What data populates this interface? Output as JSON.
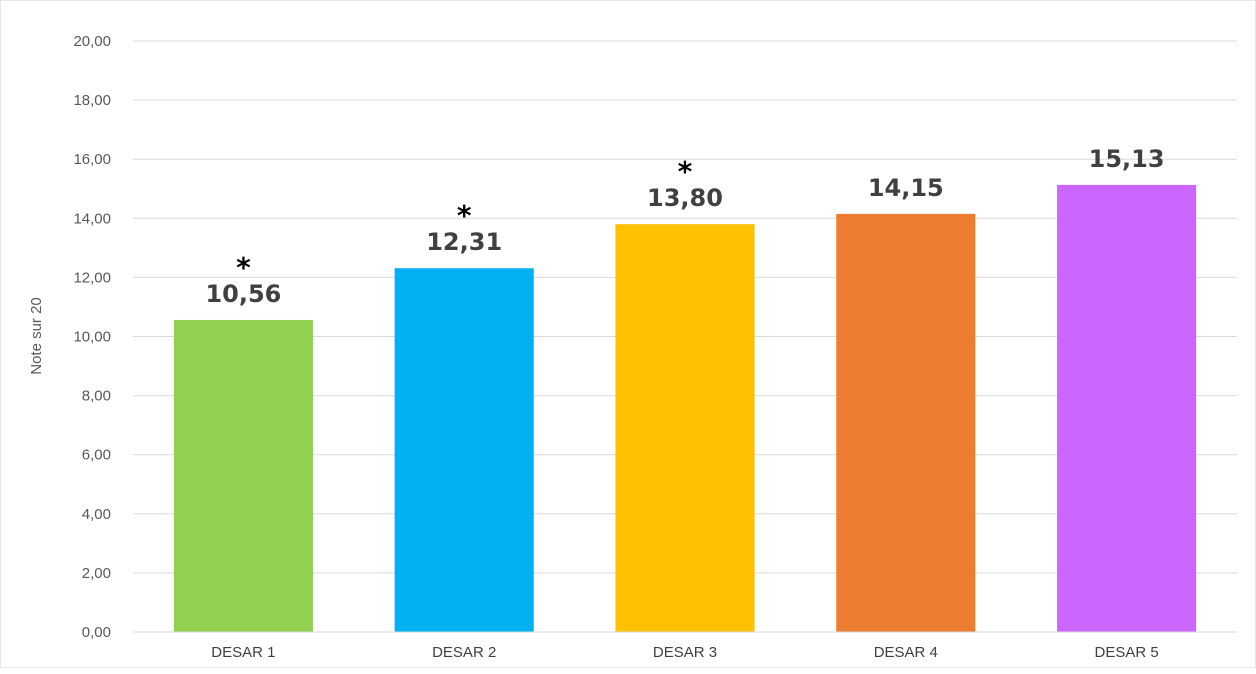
{
  "chart_data": {
    "type": "bar",
    "title": "",
    "xlabel": "",
    "ylabel": "Note sur 20",
    "ylim": [
      0,
      20
    ],
    "ytick_step": 2,
    "ytick_labels": [
      "0,00",
      "2,00",
      "4,00",
      "6,00",
      "8,00",
      "10,00",
      "12,00",
      "14,00",
      "16,00",
      "18,00",
      "20,00"
    ],
    "grid": true,
    "legend": "none",
    "categories": [
      "DESAR 1",
      "DESAR 2",
      "DESAR 3",
      "DESAR 4",
      "DESAR 5"
    ],
    "values": [
      10.56,
      12.31,
      13.8,
      14.15,
      15.13
    ],
    "data_labels": [
      "10,56",
      "12,31",
      "13,80",
      "14,15",
      "15,13"
    ],
    "annotations": [
      "*",
      "*",
      "*",
      "",
      ""
    ],
    "colors": [
      "#92d050",
      "#00b0f0",
      "#ffc000",
      "#ed7d31",
      "#cc66ff"
    ]
  }
}
